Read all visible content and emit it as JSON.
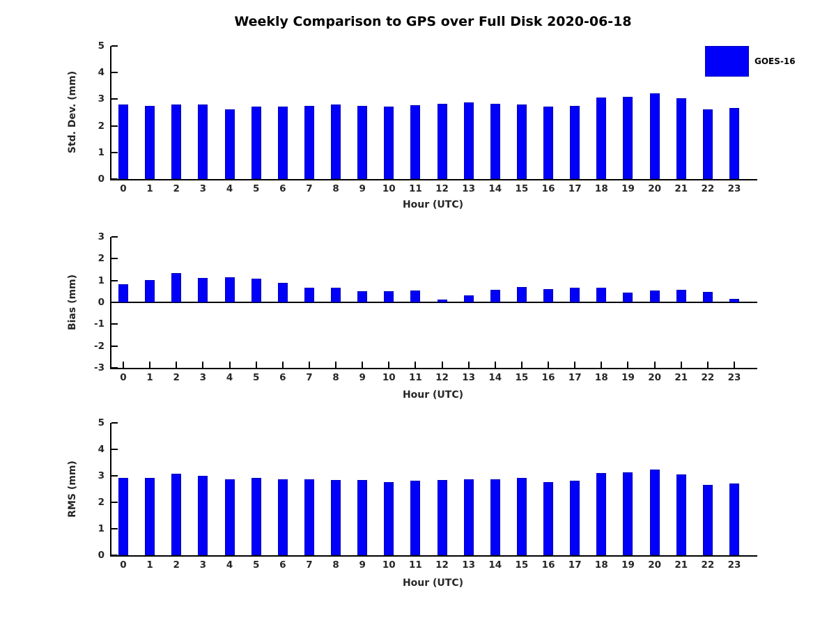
{
  "title": "Weekly Comparison to GPS over Full Disk 2020-06-18",
  "legend": {
    "label": "GOES-16",
    "color": "#0000fa",
    "position": "top-right"
  },
  "chart_data": [
    {
      "type": "bar",
      "id": "std-dev",
      "title": "",
      "xlabel": "Hour (UTC)",
      "ylabel": "Std. Dev. (mm)",
      "ylim": [
        0,
        5
      ],
      "yticks": [
        0,
        1,
        2,
        3,
        4,
        5
      ],
      "baseline": 0,
      "grid": false,
      "categories": [
        "0",
        "1",
        "2",
        "3",
        "4",
        "5",
        "6",
        "7",
        "8",
        "9",
        "10",
        "11",
        "12",
        "13",
        "14",
        "15",
        "16",
        "17",
        "18",
        "19",
        "20",
        "21",
        "22",
        "23"
      ],
      "series": [
        {
          "name": "GOES-16",
          "values": [
            2.81,
            2.76,
            2.79,
            2.79,
            2.63,
            2.71,
            2.73,
            2.76,
            2.79,
            2.76,
            2.71,
            2.78,
            2.84,
            2.87,
            2.82,
            2.81,
            2.72,
            2.76,
            3.06,
            3.1,
            3.22,
            3.03,
            2.62,
            2.68
          ]
        }
      ]
    },
    {
      "type": "bar",
      "id": "bias",
      "title": "",
      "xlabel": "Hour (UTC)",
      "ylabel": "Bias (mm)",
      "ylim": [
        -3,
        3
      ],
      "yticks": [
        3,
        2,
        1,
        0,
        -1,
        -2,
        -3
      ],
      "baseline": 0,
      "grid": false,
      "categories": [
        "0",
        "1",
        "2",
        "3",
        "4",
        "5",
        "6",
        "7",
        "8",
        "9",
        "10",
        "11",
        "12",
        "13",
        "14",
        "15",
        "16",
        "17",
        "18",
        "19",
        "20",
        "21",
        "22",
        "23"
      ],
      "series": [
        {
          "name": "GOES-16",
          "values": [
            0.82,
            1.03,
            1.33,
            1.12,
            1.15,
            1.09,
            0.88,
            0.67,
            0.67,
            0.52,
            0.5,
            0.55,
            0.12,
            0.33,
            0.57,
            0.7,
            0.6,
            0.66,
            0.66,
            0.44,
            0.53,
            0.56,
            0.49,
            0.15
          ]
        }
      ]
    },
    {
      "type": "bar",
      "id": "rms",
      "title": "",
      "xlabel": "Hour (UTC)",
      "ylabel": "RMS (mm)",
      "ylim": [
        0,
        5
      ],
      "yticks": [
        0,
        1,
        2,
        3,
        4,
        5
      ],
      "baseline": 0,
      "grid": false,
      "categories": [
        "0",
        "1",
        "2",
        "3",
        "4",
        "5",
        "6",
        "7",
        "8",
        "9",
        "10",
        "11",
        "12",
        "13",
        "14",
        "15",
        "16",
        "17",
        "18",
        "19",
        "20",
        "21",
        "22",
        "23"
      ],
      "series": [
        {
          "name": "GOES-16",
          "values": [
            2.93,
            2.93,
            3.09,
            3.01,
            2.88,
            2.93,
            2.88,
            2.86,
            2.85,
            2.83,
            2.77,
            2.82,
            2.85,
            2.87,
            2.88,
            2.91,
            2.77,
            2.82,
            3.11,
            3.14,
            3.24,
            3.06,
            2.67,
            2.7
          ]
        }
      ]
    }
  ]
}
